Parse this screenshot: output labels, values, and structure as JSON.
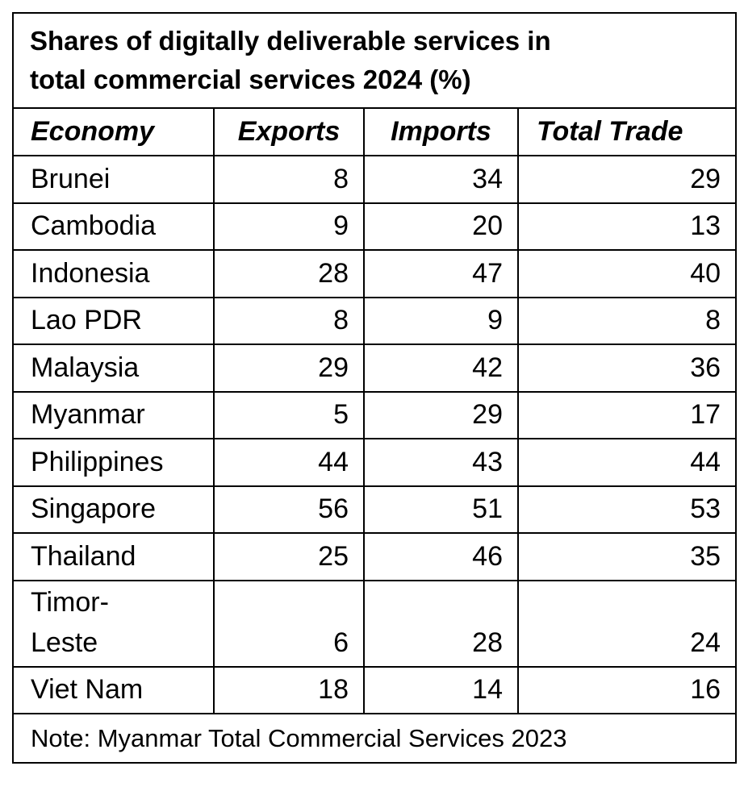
{
  "title_line1": "Shares of digitally deliverable services in",
  "title_line2": "total commercial services 2024 (%)",
  "headers": {
    "economy": "Economy",
    "exports": "Exports",
    "imports": "Imports",
    "total": "Total Trade"
  },
  "rows": [
    {
      "economy": "Brunei",
      "exports": "8",
      "imports": "34",
      "total": "29"
    },
    {
      "economy": "Cambodia",
      "exports": "9",
      "imports": "20",
      "total": "13"
    },
    {
      "economy": "Indonesia",
      "exports": "28",
      "imports": "47",
      "total": "40"
    },
    {
      "economy": "Lao PDR",
      "exports": "8",
      "imports": "9",
      "total": "8"
    },
    {
      "economy": "Malaysia",
      "exports": "29",
      "imports": "42",
      "total": "36"
    },
    {
      "economy": "Myanmar",
      "exports": "5",
      "imports": "29",
      "total": "17"
    },
    {
      "economy": "Philippines",
      "exports": "44",
      "imports": "43",
      "total": "44"
    },
    {
      "economy": "Singapore",
      "exports": "56",
      "imports": "51",
      "total": "53"
    },
    {
      "economy": "Thailand",
      "exports": "25",
      "imports": "46",
      "total": "35"
    },
    {
      "economy_line1": "Timor-",
      "economy_line2": "Leste",
      "exports": "6",
      "imports": "28",
      "total": "24"
    },
    {
      "economy": "Viet Nam",
      "exports": "18",
      "imports": "14",
      "total": "16"
    }
  ],
  "note": "Note: Myanmar Total Commercial Services 2023",
  "chart_data": {
    "type": "table",
    "columns": [
      "Economy",
      "Exports",
      "Imports",
      "Total Trade"
    ],
    "rows": [
      [
        "Brunei",
        8,
        34,
        29
      ],
      [
        "Cambodia",
        9,
        20,
        13
      ],
      [
        "Indonesia",
        28,
        47,
        40
      ],
      [
        "Lao PDR",
        8,
        9,
        8
      ],
      [
        "Malaysia",
        29,
        42,
        36
      ],
      [
        "Myanmar",
        5,
        29,
        17
      ],
      [
        "Philippines",
        44,
        43,
        44
      ],
      [
        "Singapore",
        56,
        51,
        53
      ],
      [
        "Thailand",
        25,
        46,
        35
      ],
      [
        "Timor-Leste",
        6,
        28,
        24
      ],
      [
        "Viet Nam",
        18,
        14,
        16
      ]
    ]
  }
}
